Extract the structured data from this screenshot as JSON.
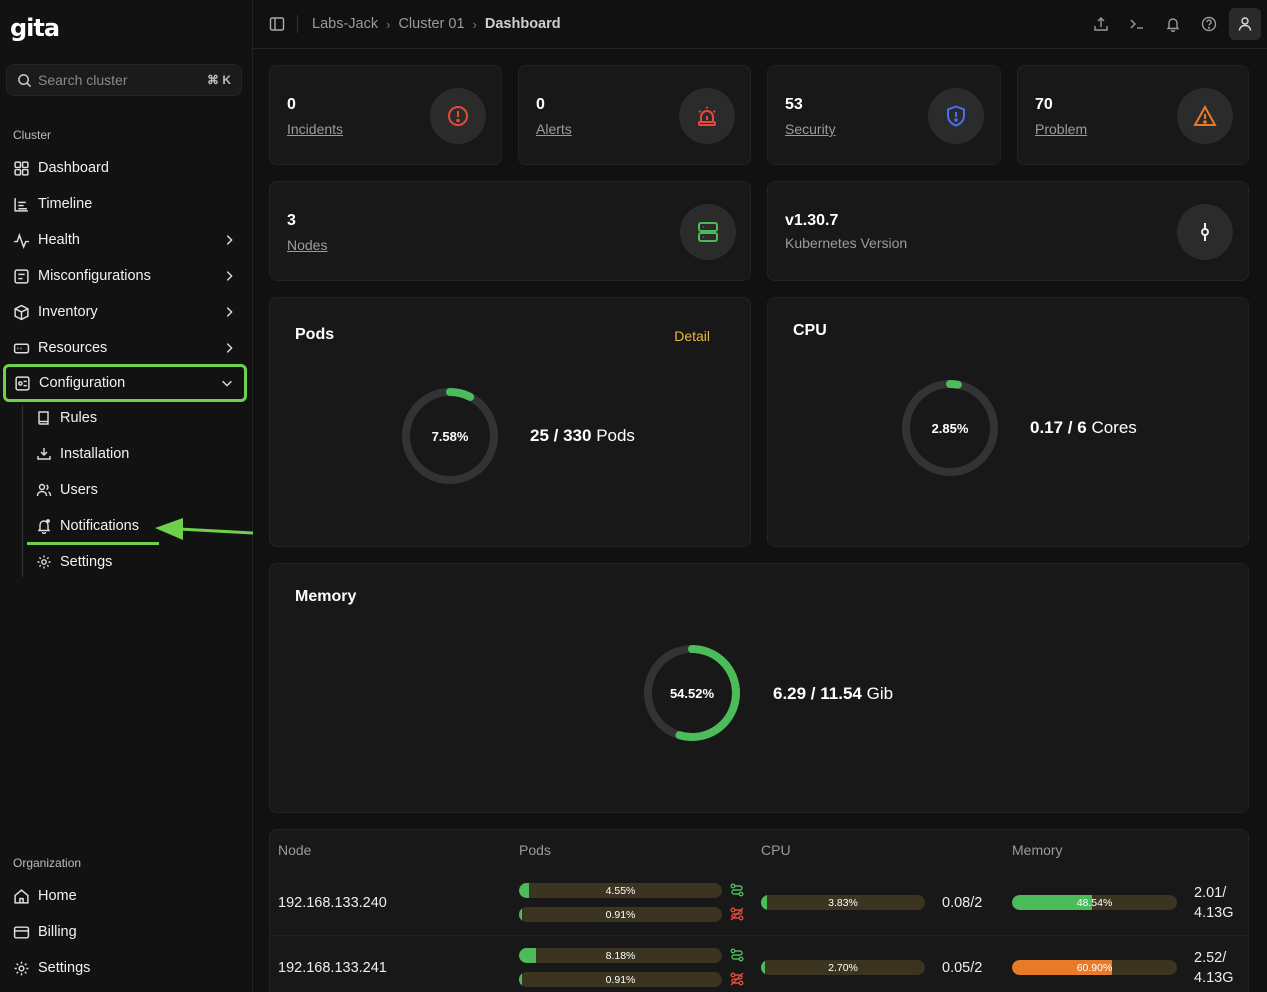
{
  "app": {
    "logo": "gita"
  },
  "search": {
    "placeholder": "Search cluster",
    "shortcut": "⌘ K"
  },
  "sidebar": {
    "cluster_label": "Cluster",
    "items": [
      {
        "label": "Dashboard",
        "icon": "grid-icon"
      },
      {
        "label": "Timeline",
        "icon": "timeline-icon"
      },
      {
        "label": "Health",
        "icon": "pulse-icon"
      },
      {
        "label": "Misconfigurations",
        "icon": "misconfig-icon"
      },
      {
        "label": "Inventory",
        "icon": "box-icon"
      },
      {
        "label": "Resources",
        "icon": "resources-icon"
      },
      {
        "label": "Configuration",
        "icon": "config-icon"
      }
    ],
    "config_sub": [
      {
        "label": "Rules",
        "icon": "book-icon"
      },
      {
        "label": "Installation",
        "icon": "download-icon"
      },
      {
        "label": "Users",
        "icon": "users-icon"
      },
      {
        "label": "Notifications",
        "icon": "bell-icon"
      },
      {
        "label": "Settings",
        "icon": "gear-icon"
      }
    ],
    "org_label": "Organization",
    "org_items": [
      {
        "label": "Home",
        "icon": "home-icon"
      },
      {
        "label": "Billing",
        "icon": "card-icon"
      },
      {
        "label": "Settings",
        "icon": "gear-icon"
      }
    ]
  },
  "breadcrumb": {
    "org": "Labs-Jack",
    "cluster": "Cluster 01",
    "page": "Dashboard"
  },
  "stats": {
    "incidents": {
      "value": "0",
      "label": "Incidents"
    },
    "alerts": {
      "value": "0",
      "label": "Alerts"
    },
    "security": {
      "value": "53",
      "label": "Security"
    },
    "problem": {
      "value": "70",
      "label": "Problem"
    },
    "nodes": {
      "value": "3",
      "label": "Nodes"
    },
    "version": {
      "value": "v1.30.7",
      "label": "Kubernetes Version"
    }
  },
  "pods": {
    "title": "Pods",
    "detail": "Detail",
    "percent": "7.58%",
    "fraction": 0.0758,
    "used": "25 / 330",
    "unit": "Pods"
  },
  "cpu": {
    "title": "CPU",
    "percent": "2.85%",
    "fraction": 0.0285,
    "used": "0.17 / 6",
    "unit": "Cores"
  },
  "memory": {
    "title": "Memory",
    "percent": "54.52%",
    "fraction": 0.5452,
    "used": "6.29 / 11.54",
    "unit": "Gib"
  },
  "table": {
    "headers": {
      "node": "Node",
      "pods": "Pods",
      "cpu": "CPU",
      "memory": "Memory"
    },
    "rows": [
      {
        "ip": "192.168.133.240",
        "pods_a": "4.55%",
        "pods_a_v": 0.0455,
        "pods_b": "0.91%",
        "pods_b_v": 0.0091,
        "cpu": "3.83%",
        "cpu_v": 0.0383,
        "cpu_val": "0.08/2",
        "mem": "48.54%",
        "mem_v": 0.4854,
        "mem_val1": "2.01/",
        "mem_val2": "4.13G"
      },
      {
        "ip": "192.168.133.241",
        "pods_a": "8.18%",
        "pods_a_v": 0.0818,
        "pods_b": "0.91%",
        "pods_b_v": 0.0091,
        "cpu": "2.70%",
        "cpu_v": 0.027,
        "cpu_val": "0.05/2",
        "mem": "60.90%",
        "mem_v": 0.609,
        "mem_val1": "2.52/",
        "mem_val2": "4.13G"
      }
    ]
  },
  "colors": {
    "green": "#4cbb5a",
    "orange": "#e87b2a",
    "accent": "#6fd14b",
    "gold": "#e8b93a"
  }
}
